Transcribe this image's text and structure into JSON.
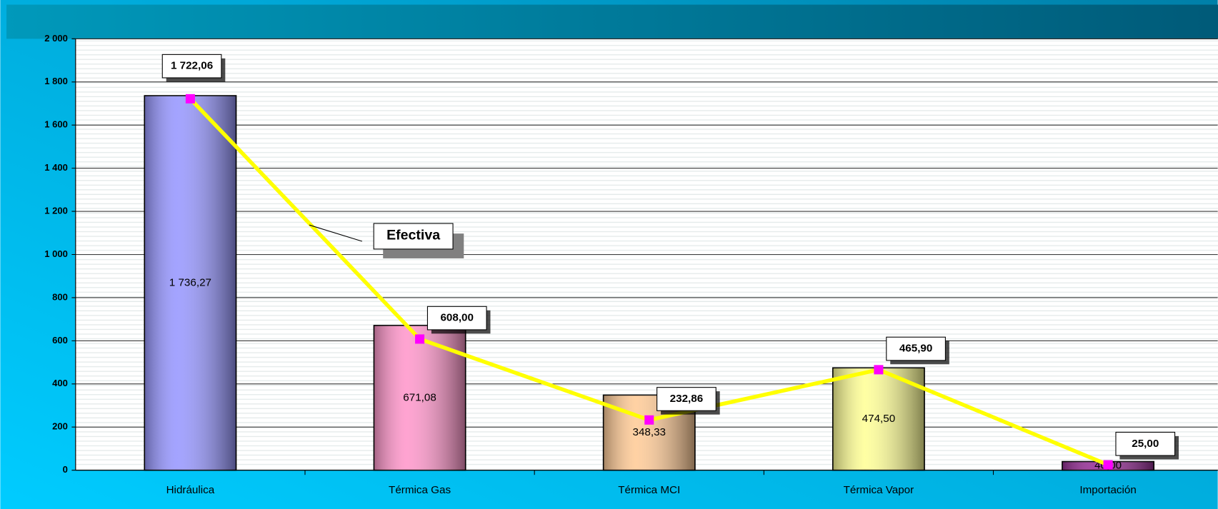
{
  "chart_data": {
    "type": "bar_line",
    "categories": [
      "Hidráulica",
      "Térmica Gas",
      "Térmica MCI",
      "Térmica Vapor",
      "Importación"
    ],
    "series": [
      {
        "type": "bar",
        "colors": [
          "#9999ff",
          "#ff99cc",
          "#ffcc99",
          "#ffff99",
          "#993399"
        ],
        "values": [
          1736.27,
          671.08,
          348.33,
          474.5,
          40.0
        ],
        "value_labels": [
          "1 736,27",
          "671,08",
          "348,33",
          "474,50",
          "40,00"
        ]
      },
      {
        "type": "line",
        "name": "Efectiva",
        "color": "#ffff00",
        "marker_color": "#ff00ff",
        "values": [
          1722.06,
          608.0,
          232.86,
          465.9,
          25.0
        ],
        "value_labels": [
          "1 722,06",
          "608,00",
          "232,86",
          "465,90",
          "25,00"
        ]
      }
    ],
    "ylim": [
      0,
      2000
    ],
    "yticks": [
      0,
      {
        "value": 200,
        "label": "200"
      },
      {
        "value": 400,
        "label": "400"
      },
      {
        "value": 600,
        "label": "600"
      },
      {
        "value": 800,
        "label": "800"
      },
      {
        "value": 1000,
        "label": "1 000"
      },
      {
        "value": 1200,
        "label": "1 200"
      },
      {
        "value": 1400,
        "label": "1 400"
      },
      {
        "value": 1600,
        "label": "1 600"
      },
      {
        "value": 1800,
        "label": "1 800"
      },
      {
        "value": 2000,
        "label": "2 000"
      }
    ],
    "grid": true
  }
}
